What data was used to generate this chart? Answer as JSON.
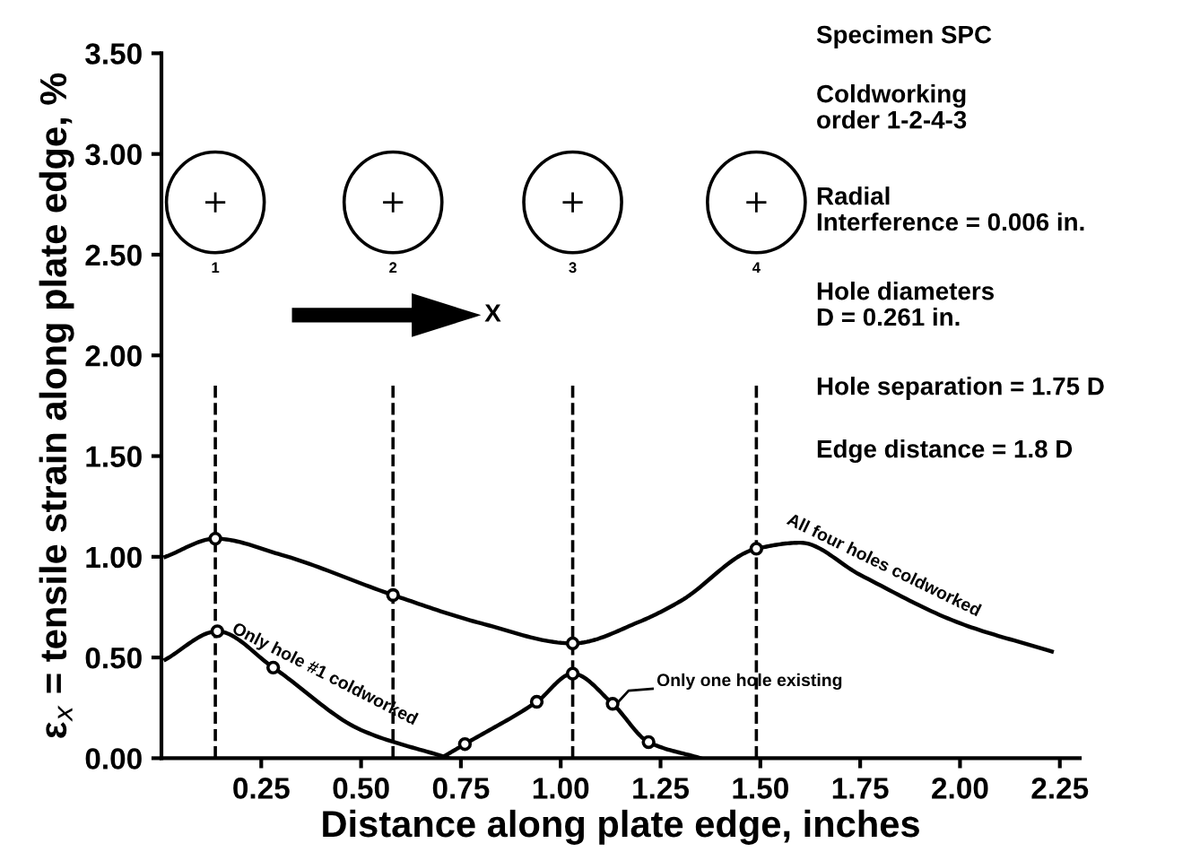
{
  "chart_data": {
    "type": "line",
    "xlabel": "Distance along plate edge, inches",
    "ylabel": "ε$_{x}$ = tensile strain along plate edge, %",
    "xlim": [
      0.0,
      2.3
    ],
    "ylim": [
      0,
      3.5
    ],
    "xticks": [
      {
        "value": 0.25,
        "label": "0.25"
      },
      {
        "value": 0.5,
        "label": "0.50"
      },
      {
        "value": 0.75,
        "label": "0.75"
      },
      {
        "value": 1.0,
        "label": "1.00"
      },
      {
        "value": 1.25,
        "label": "1.25"
      },
      {
        "value": 1.5,
        "label": "1.50"
      },
      {
        "value": 1.75,
        "label": "1.75"
      },
      {
        "value": 2.0,
        "label": "2.00"
      },
      {
        "value": 2.25,
        "label": "2.25"
      }
    ],
    "yticks": [
      {
        "value": 0,
        "label": "0.00"
      },
      {
        "value": 0.5,
        "label": "0.50"
      },
      {
        "value": 1.0,
        "label": "1.00"
      },
      {
        "value": 1.5,
        "label": "1.50"
      },
      {
        "value": 2.0,
        "label": "2.00"
      },
      {
        "value": 2.5,
        "label": "2.50"
      },
      {
        "value": 3.0,
        "label": "3.00"
      },
      {
        "value": 3.5,
        "label": "3.50"
      }
    ],
    "grid": false,
    "marker": "none",
    "line_style": "solid",
    "series": [
      {
        "color": "#000000",
        "x": [
          0.01,
          0.135,
          0.3,
          0.58,
          0.8,
          1.03,
          1.2,
          1.3,
          1.49,
          1.6,
          1.75,
          2.0,
          2.23
        ],
        "values": [
          1.0,
          1.09,
          1.01,
          0.81,
          0.67,
          0.57,
          0.68,
          0.78,
          1.04,
          1.07,
          0.91,
          0.67,
          0.53
        ]
      },
      {
        "color": "#000000",
        "x": [
          0.01,
          0.14,
          0.28,
          0.5,
          0.72
        ],
        "values": [
          0.49,
          0.63,
          0.45,
          0.14,
          0.0
        ]
      },
      {
        "color": "#000000",
        "x": [
          0.7,
          0.76,
          0.94,
          1.03,
          1.13,
          1.22,
          1.35
        ],
        "values": [
          0.0,
          0.07,
          0.28,
          0.42,
          0.27,
          0.08,
          0.0
        ]
      },
      {
        "type": "scatter",
        "color": "#000000",
        "marker": "circle",
        "x": [
          0.135,
          0.58,
          1.03,
          1.49,
          0.14,
          0.28,
          0.76,
          0.94,
          1.03,
          1.13,
          1.22
        ],
        "values": [
          1.09,
          0.81,
          0.57,
          1.04,
          0.63,
          0.45,
          0.07,
          0.28,
          0.42,
          0.27,
          0.08
        ]
      }
    ],
    "ref_lines": [
      {
        "axis": "x",
        "value": 0.135,
        "line_style": "dashed",
        "color": "#000000"
      },
      {
        "axis": "x",
        "value": 0.58,
        "line_style": "dashed",
        "color": "#000000"
      },
      {
        "axis": "x",
        "value": 1.03,
        "line_style": "dashed",
        "color": "#000000"
      },
      {
        "axis": "x",
        "value": 1.49,
        "line_style": "dashed",
        "color": "#000000"
      }
    ],
    "annotations": [
      "Specimen SPC",
      "Coldworking\norder 1-2-4-3",
      "Radial\nInterference = 0.006 in.",
      "Hole diameters\nD = 0.261 in.",
      "Hole separation = 1.75 D",
      "Edge distance = 1.8 D",
      "X",
      "1",
      "2",
      "3",
      "4",
      "Only hole #1 coldworked",
      "Only one hole existing",
      "All four holes coldworked"
    ]
  }
}
